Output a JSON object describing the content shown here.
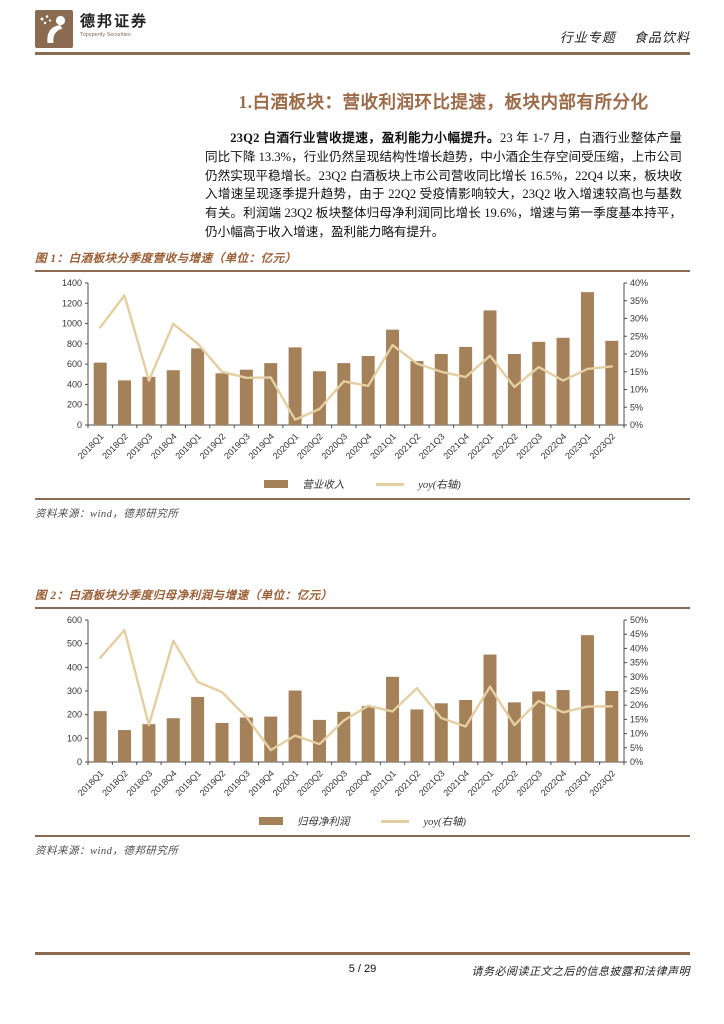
{
  "header": {
    "brand_name": "德邦证券",
    "brand_subtitle": "Topsperity Securities",
    "doc_type": "行业专题",
    "doc_topic": "食品饮料"
  },
  "section": {
    "title": "1.白酒板块：营收利润环比提速，板块内部有所分化"
  },
  "paragraph": {
    "lead": "23Q2 白酒行业营收提速，盈利能力小幅提升。",
    "body": "23 年 1-7 月，白酒行业整体产量同比下降 13.3%，行业仍然呈现结构性增长趋势，中小酒企生存空间受压缩，上市公司仍然实现平稳增长。23Q2 白酒板块上市公司营收同比增长 16.5%，22Q4 以来，板块收入增速呈现逐季提升趋势，由于 22Q2 受疫情影响较大，23Q2 收入增速较高也与基数有关。利润端 23Q2 板块整体归母净利润同比增长 19.6%，增速与第一季度基本持平，仍小幅高于收入增速，盈利能力略有提升。"
  },
  "figures": [
    {
      "caption": "图 1：白酒板块分季度营收与增速（单位：亿元）",
      "source": "资料来源：wind，德邦研究所"
    },
    {
      "caption": "图 2：白酒板块分季度归母净利润与增速（单位：亿元）",
      "source": "资料来源：wind，德邦研究所"
    }
  ],
  "chart_data": [
    {
      "type": "bar",
      "title": "白酒板块分季度营收与增速（单位：亿元）",
      "categories": [
        "2018Q1",
        "2018Q2",
        "2018Q3",
        "2018Q4",
        "2019Q1",
        "2019Q2",
        "2019Q3",
        "2019Q4",
        "2020Q1",
        "2020Q2",
        "2020Q3",
        "2020Q4",
        "2021Q1",
        "2021Q2",
        "2021Q3",
        "2021Q4",
        "2022Q1",
        "2022Q2",
        "2022Q3",
        "2022Q4",
        "2023Q1",
        "2023Q2"
      ],
      "series": [
        {
          "name": "营业收入",
          "type": "bar",
          "axis": "left",
          "values": [
            615,
            440,
            475,
            540,
            755,
            510,
            545,
            610,
            765,
            530,
            610,
            680,
            940,
            630,
            700,
            770,
            1130,
            700,
            820,
            860,
            1310,
            830
          ]
        },
        {
          "name": "yoy(右轴)",
          "type": "line",
          "axis": "right",
          "values": [
            27.5,
            36.5,
            12.5,
            28.5,
            23.0,
            15.0,
            13.3,
            13.4,
            1.5,
            4.5,
            12.3,
            11.0,
            22.5,
            17.3,
            15.0,
            13.5,
            19.5,
            10.7,
            16.3,
            12.5,
            15.8,
            16.5
          ]
        }
      ],
      "left_axis": {
        "min": 0,
        "max": 1400,
        "step": 200,
        "suffix": ""
      },
      "right_axis": {
        "min": 0,
        "max": 40,
        "step": 5,
        "suffix": "%"
      },
      "grid": false,
      "legend_position": "bottom"
    },
    {
      "type": "bar",
      "title": "白酒板块分季度归母净利润与增速（单位：亿元）",
      "categories": [
        "2018Q1",
        "2018Q2",
        "2018Q3",
        "2018Q4",
        "2019Q1",
        "2019Q2",
        "2019Q3",
        "2019Q4",
        "2020Q1",
        "2020Q2",
        "2020Q3",
        "2020Q4",
        "2021Q1",
        "2021Q2",
        "2021Q3",
        "2021Q4",
        "2022Q1",
        "2022Q2",
        "2022Q3",
        "2022Q4",
        "2023Q1",
        "2023Q2"
      ],
      "series": [
        {
          "name": "归母净利润",
          "type": "bar",
          "axis": "left",
          "values": [
            215,
            135,
            160,
            185,
            275,
            165,
            188,
            192,
            302,
            178,
            212,
            236,
            360,
            222,
            248,
            262,
            454,
            252,
            298,
            304,
            536,
            300
          ]
        },
        {
          "name": "yoy(右轴)",
          "type": "line",
          "axis": "right",
          "values": [
            36.7,
            46.4,
            13.0,
            42.7,
            28.2,
            24.6,
            15.8,
            4.2,
            9.3,
            6.3,
            14.6,
            19.8,
            17.8,
            26.0,
            15.5,
            12.5,
            26.5,
            13.0,
            21.5,
            17.5,
            19.5,
            19.6
          ]
        }
      ],
      "left_axis": {
        "min": 0,
        "max": 600,
        "step": 100,
        "suffix": ""
      },
      "right_axis": {
        "min": 0,
        "max": 50,
        "step": 5,
        "suffix": "%"
      },
      "grid": false,
      "legend_position": "bottom"
    }
  ],
  "footer": {
    "page": "5 / 29",
    "disclaimer": "请务必阅读正文之后的信息披露和法律声明"
  },
  "colors": {
    "brand_brown": "#8a6b52",
    "title_brown": "#9c6b4a",
    "caption_brown": "#9a5f36",
    "bar": "#a5815a",
    "line": "#e4cfa2",
    "axis": "#4d4d4d",
    "axis_text": "#333333"
  }
}
